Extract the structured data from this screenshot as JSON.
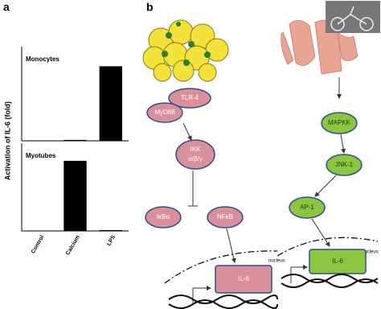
{
  "panel_a": {
    "label": "a",
    "ylabel": "Activation of IL-6 (fold)"
  },
  "chart_data": [
    {
      "type": "bar",
      "title": "Monocytes",
      "categories": [
        null,
        null,
        null
      ],
      "values": [
        0,
        1,
        82
      ],
      "ylim": [
        0,
        100
      ],
      "color": "#000000"
    },
    {
      "type": "bar",
      "title": "Myotubes",
      "categories": [
        "Control",
        "Calcium",
        "LPS"
      ],
      "values": [
        0,
        83,
        1
      ],
      "ylim": [
        0,
        100
      ],
      "color": "#000000"
    }
  ],
  "panel_b": {
    "label": "b",
    "left": {
      "receptor": "TLR-4",
      "adaptor": "MyD88",
      "kinase": [
        "IKK",
        "α/β/γ"
      ],
      "inhibitor": "IκBα",
      "factor": "NFκB",
      "gene": "IL-6",
      "compartment": "nucleus"
    },
    "right": {
      "kinase1": "MAPKK",
      "kinase2": "JNK-1",
      "factor": "AP-1",
      "gene": "IL-6",
      "compartment": "nucleus"
    }
  }
}
